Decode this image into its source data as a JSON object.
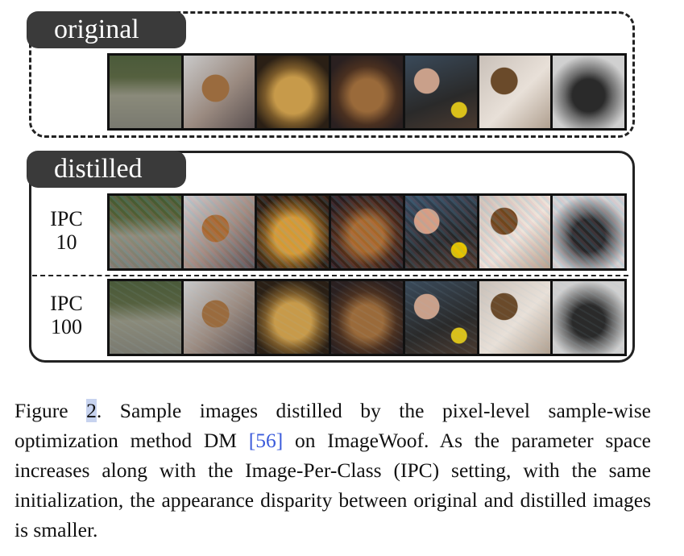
{
  "figure": {
    "panels": {
      "original_label": "original",
      "distilled_label": "distilled",
      "rows": [
        {
          "label_line1": "IPC",
          "label_line2": "10"
        },
        {
          "label_line1": "IPC",
          "label_line2": "100"
        }
      ],
      "thumbnail_subjects": [
        "dogs-on-grass",
        "yorkie-on-bed",
        "yorkie-face",
        "small-terrier",
        "person-with-dog",
        "dog-on-bed",
        "gray-yorkie"
      ]
    },
    "caption": {
      "prefix": "Figure ",
      "number": "2",
      "after_number": ". Sample images distilled by the pixel-level sample-wise optimization method DM ",
      "citation": "[56]",
      "rest": " on ImageWoof. As the parameter space increases along with the Image-Per-Class (IPC) setting, with the same initialization, the appearance disparity between original and distilled images is smaller."
    },
    "colors": {
      "tag_background": "#3a3a3a",
      "citation_link": "#3b5bdb",
      "figure_number_highlight": "#c7d3ef"
    }
  }
}
